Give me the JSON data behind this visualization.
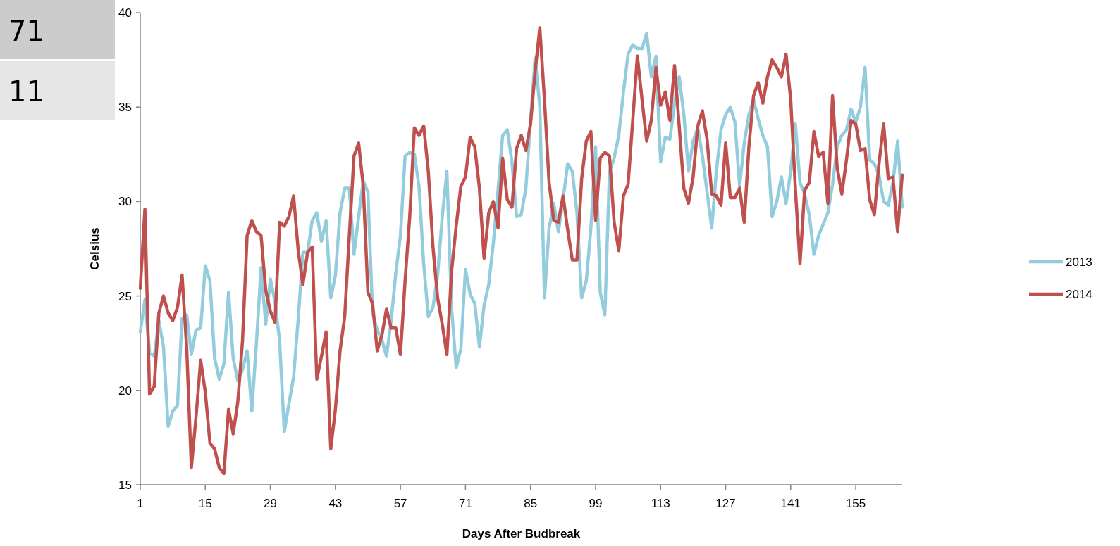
{
  "chart_data": {
    "type": "line",
    "xlabel": "Days After Budbreak",
    "ylabel": "Celsius",
    "annotations": [
      "71",
      "11"
    ],
    "x": [
      1,
      2,
      3,
      4,
      5,
      6,
      7,
      8,
      9,
      10,
      11,
      12,
      13,
      14,
      15,
      16,
      17,
      18,
      19,
      20,
      21,
      22,
      23,
      24,
      25,
      26,
      27,
      28,
      29,
      30,
      31,
      32,
      33,
      34,
      35,
      36,
      37,
      38,
      39,
      40,
      41,
      42,
      43,
      44,
      45,
      46,
      47,
      48,
      49,
      50,
      51,
      52,
      53,
      54,
      55,
      56,
      57,
      58,
      59,
      60,
      61,
      62,
      63,
      64,
      65,
      66,
      67,
      68,
      69,
      70,
      71,
      72,
      73,
      74,
      75,
      76,
      77,
      78,
      79,
      80,
      81,
      82,
      83,
      84,
      85,
      86,
      87,
      88,
      89,
      90,
      91,
      92,
      93,
      94,
      95,
      96,
      97,
      98,
      99,
      100,
      101,
      102,
      103,
      104,
      105,
      106,
      107,
      108,
      109,
      110,
      111,
      112,
      113,
      114,
      115,
      116,
      117,
      118,
      119,
      120,
      121,
      122,
      123,
      124,
      125,
      126,
      127,
      128,
      129,
      130,
      131,
      132,
      133,
      134,
      135,
      136,
      137,
      138,
      139,
      140,
      141,
      142,
      143,
      144,
      145,
      146,
      147,
      148,
      149,
      150,
      151,
      152,
      153,
      154,
      155,
      156,
      157,
      158,
      159,
      160,
      161,
      162,
      163,
      164,
      165
    ],
    "xlim": [
      1,
      165
    ],
    "xticks": [
      1,
      15,
      29,
      43,
      57,
      71,
      85,
      99,
      113,
      127,
      141,
      155
    ],
    "ylim": [
      15,
      40
    ],
    "yticks": [
      15,
      20,
      25,
      30,
      35,
      40
    ],
    "legend": "right",
    "grid": false,
    "marker": "none",
    "line_style": "solid",
    "series": [
      {
        "name": "2013",
        "color": "#93cddd",
        "values": [
          23.1,
          24.8,
          22.0,
          21.8,
          23.7,
          22.3,
          18.1,
          18.9,
          19.2,
          23.8,
          24.0,
          21.9,
          23.2,
          23.3,
          26.6,
          25.8,
          21.7,
          20.6,
          21.4,
          25.2,
          21.7,
          20.5,
          21.1,
          22.1,
          18.9,
          22.5,
          26.5,
          23.5,
          25.9,
          24.7,
          22.6,
          17.8,
          19.3,
          20.7,
          23.8,
          27.3,
          27.3,
          29.0,
          29.4,
          27.9,
          29.0,
          24.9,
          26.1,
          29.4,
          30.7,
          30.7,
          27.2,
          29.2,
          31.1,
          30.5,
          24.1,
          23.2,
          22.7,
          21.8,
          23.7,
          26.2,
          28.2,
          32.4,
          32.6,
          32.5,
          30.8,
          26.7,
          23.9,
          24.4,
          26.1,
          29.2,
          31.6,
          24.4,
          21.2,
          22.2,
          26.4,
          25.1,
          24.6,
          22.3,
          24.5,
          25.6,
          27.8,
          30.6,
          33.5,
          33.8,
          32.1,
          29.2,
          29.3,
          30.7,
          34.3,
          37.6,
          35.0,
          24.9,
          28.6,
          29.9,
          28.4,
          30.1,
          32.0,
          31.6,
          29.4,
          24.9,
          25.8,
          28.6,
          32.9,
          25.2,
          24.0,
          31.6,
          32.3,
          33.5,
          35.8,
          37.8,
          38.3,
          38.1,
          38.1,
          38.9,
          36.6,
          37.7,
          32.1,
          33.4,
          33.3,
          35.2,
          36.6,
          34.6,
          31.6,
          33.2,
          33.9,
          32.4,
          30.5,
          28.6,
          31.6,
          33.8,
          34.6,
          35.0,
          34.2,
          30.8,
          33.1,
          34.6,
          35.4,
          34.4,
          33.5,
          32.9,
          29.2,
          30.0,
          31.3,
          29.9,
          31.6,
          34.1,
          31.0,
          30.4,
          29.3,
          27.2,
          28.2,
          28.8,
          29.4,
          30.9,
          32.9,
          33.5,
          33.8,
          34.9,
          34.2,
          35.0,
          37.1,
          32.2,
          32.0,
          31.4,
          30.0,
          29.8,
          31.0,
          33.2,
          29.7
        ]
      },
      {
        "name": "2014",
        "color": "#c0504d",
        "values": [
          25.4,
          29.6,
          19.8,
          20.2,
          24.1,
          25.0,
          24.1,
          23.7,
          24.4,
          26.1,
          22.2,
          15.9,
          18.6,
          21.6,
          19.9,
          17.2,
          16.9,
          15.9,
          15.6,
          19.0,
          17.7,
          19.4,
          22.6,
          28.2,
          29.0,
          28.4,
          28.2,
          25.3,
          24.2,
          23.6,
          28.9,
          28.7,
          29.2,
          30.3,
          27.4,
          25.6,
          27.3,
          27.6,
          20.6,
          21.8,
          23.1,
          16.9,
          19.0,
          22.1,
          23.9,
          28.2,
          32.4,
          33.1,
          30.8,
          25.2,
          24.6,
          22.1,
          22.9,
          24.3,
          23.3,
          23.3,
          21.9,
          25.8,
          29.2,
          33.9,
          33.5,
          34.0,
          31.6,
          27.6,
          24.9,
          23.5,
          21.9,
          26.3,
          28.7,
          30.8,
          31.3,
          33.4,
          32.9,
          30.7,
          27.0,
          29.4,
          30.0,
          28.6,
          32.3,
          30.1,
          29.7,
          32.8,
          33.5,
          32.7,
          34.1,
          36.9,
          39.2,
          35.4,
          31.0,
          29.0,
          28.9,
          30.3,
          28.5,
          26.9,
          26.9,
          31.2,
          33.2,
          33.7,
          29.0,
          32.3,
          32.6,
          32.4,
          28.9,
          27.4,
          30.3,
          30.9,
          34.3,
          37.7,
          35.4,
          33.2,
          34.3,
          37.1,
          35.1,
          35.8,
          34.3,
          37.2,
          34.0,
          30.7,
          29.9,
          31.3,
          34.0,
          34.8,
          33.3,
          30.4,
          30.3,
          29.8,
          33.1,
          30.2,
          30.2,
          30.7,
          28.9,
          32.9,
          35.6,
          36.3,
          35.2,
          36.6,
          37.5,
          37.1,
          36.6,
          37.8,
          35.4,
          30.7,
          26.7,
          30.6,
          31.0,
          33.7,
          32.4,
          32.6,
          29.9,
          35.6,
          31.8,
          30.4,
          32.2,
          34.3,
          34.1,
          32.7,
          32.8,
          30.1,
          29.3,
          32.0,
          34.1,
          31.2,
          31.3,
          28.4,
          31.4
        ]
      }
    ]
  }
}
